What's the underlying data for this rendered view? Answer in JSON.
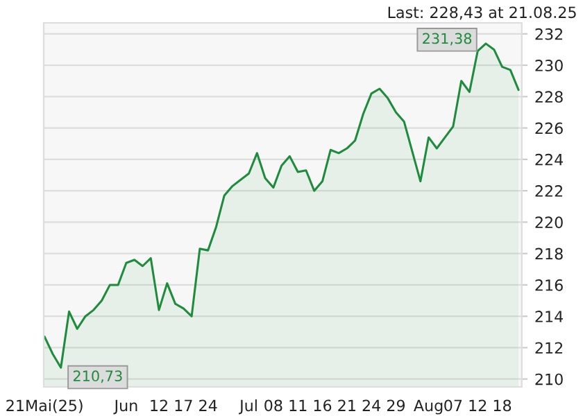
{
  "chart_data": {
    "type": "area",
    "categories": [
      "21Mai(25)",
      null,
      null,
      null,
      null,
      null,
      null,
      null,
      null,
      null,
      "Jun",
      null,
      null,
      null,
      "12",
      null,
      null,
      "17",
      null,
      null,
      "24",
      null,
      null,
      null,
      null,
      "Jul",
      null,
      null,
      "08",
      null,
      null,
      "11",
      null,
      null,
      "16",
      null,
      null,
      "21",
      null,
      null,
      "24",
      null,
      null,
      "29",
      null,
      null,
      null,
      "Aug",
      null,
      null,
      "07",
      null,
      null,
      "12",
      null,
      null,
      "18",
      null,
      null
    ],
    "series": [
      {
        "color": "#1e8c3c",
        "values": [
          212.7,
          211.6,
          210.73,
          214.3,
          213.2,
          214.0,
          214.4,
          215.0,
          216.0,
          216.0,
          217.4,
          217.6,
          217.2,
          217.7,
          214.4,
          216.1,
          214.8,
          214.5,
          214.0,
          218.3,
          218.2,
          219.7,
          221.7,
          222.3,
          222.7,
          223.1,
          224.4,
          222.8,
          222.2,
          223.6,
          224.2,
          223.2,
          223.3,
          222.0,
          222.6,
          224.6,
          224.4,
          224.7,
          225.2,
          226.9,
          228.2,
          228.5,
          227.9,
          227.0,
          226.4,
          224.5,
          222.6,
          225.4,
          224.7,
          225.4,
          226.1,
          229.0,
          228.3,
          230.9,
          231.38,
          231.0,
          229.9,
          229.7,
          228.43
        ]
      }
    ],
    "ylim": [
      209.5,
      232.7
    ],
    "yticks": [
      210,
      212,
      214,
      216,
      218,
      220,
      222,
      224,
      226,
      228,
      230,
      232
    ],
    "grid": "y",
    "annotations": [
      "Last: 228,43 at 21.08.25",
      "231,38",
      "210,73"
    ]
  }
}
